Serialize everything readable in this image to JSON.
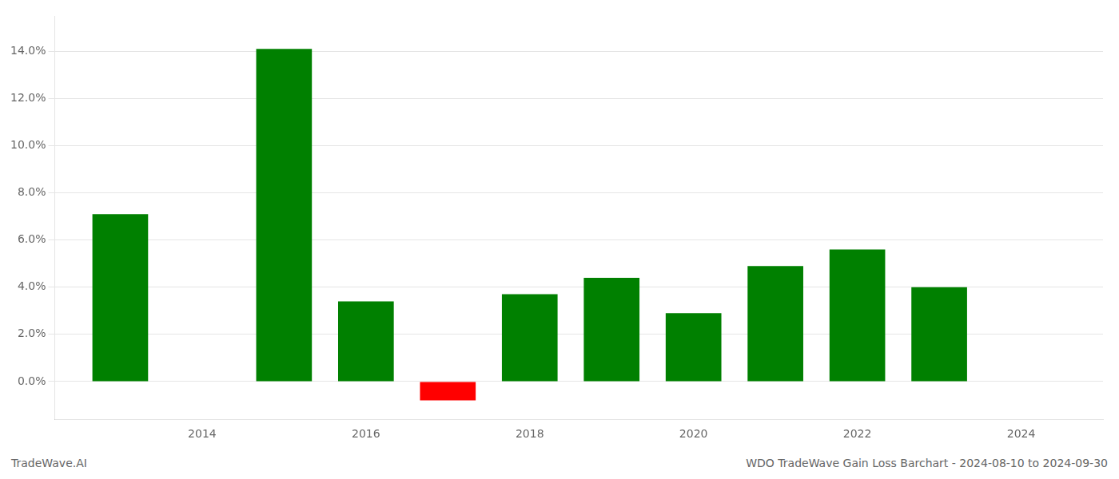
{
  "chart_data": {
    "type": "bar",
    "x": [
      2013,
      2015,
      2016,
      2017,
      2018,
      2019,
      2020,
      2021,
      2022,
      2023
    ],
    "values": [
      0.071,
      0.141,
      0.034,
      -0.008,
      0.037,
      0.044,
      0.029,
      0.049,
      0.056,
      0.04
    ],
    "colors": [
      "#008000",
      "#008000",
      "#008000",
      "#ff0000",
      "#008000",
      "#008000",
      "#008000",
      "#008000",
      "#008000",
      "#008000"
    ],
    "xlim": [
      2012.2,
      2025.0
    ],
    "xticks": [
      2014,
      2016,
      2018,
      2020,
      2022,
      2024
    ],
    "ylim": [
      -0.016,
      0.155
    ],
    "yticks": [
      {
        "value": 0,
        "label": "0.0%"
      },
      {
        "value": 0.02,
        "label": "2.0%"
      },
      {
        "value": 0.04,
        "label": "4.0%"
      },
      {
        "value": 0.06,
        "label": "6.0%"
      },
      {
        "value": 0.08,
        "label": "8.0%"
      },
      {
        "value": 0.1,
        "label": "10.0%"
      },
      {
        "value": 0.12,
        "label": "12.0%"
      },
      {
        "value": 0.14,
        "label": "14.0%"
      }
    ],
    "grid": true,
    "annotations": [
      "TradeWave.AI",
      "WDO TradeWave Gain Loss Barchart - 2024-08-10 to 2024-09-30"
    ]
  }
}
